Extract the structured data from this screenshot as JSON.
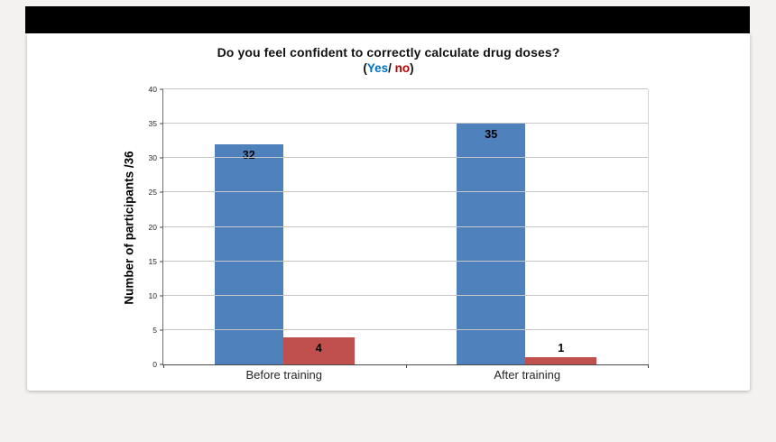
{
  "header": {
    "title": "Do you feel confident to correctly calculate drug doses?",
    "subtitle_prefix": "(",
    "subtitle_yes": "Yes",
    "subtitle_sep": "/ ",
    "subtitle_no": "no",
    "subtitle_suffix": ")"
  },
  "y_axis_label": "Number of participants /36",
  "colors": {
    "yes_bar": "#4f81bd",
    "no_bar": "#c0504d",
    "yes_text": "#0070c0",
    "no_text": "#c00000"
  },
  "chart_data": {
    "type": "bar",
    "title": "Do you feel confident to correctly calculate drug doses? (Yes/ no)",
    "categories": [
      "Before training",
      "After training"
    ],
    "series": [
      {
        "name": "Yes",
        "color": "#4f81bd",
        "values": [
          32,
          35
        ]
      },
      {
        "name": "No",
        "color": "#c0504d",
        "values": [
          4,
          1
        ]
      }
    ],
    "xlabel": "",
    "ylabel": "Number of participants /36",
    "ylim": [
      0,
      40
    ],
    "ytick_step": 5,
    "grid": true,
    "legend_position": "none"
  }
}
